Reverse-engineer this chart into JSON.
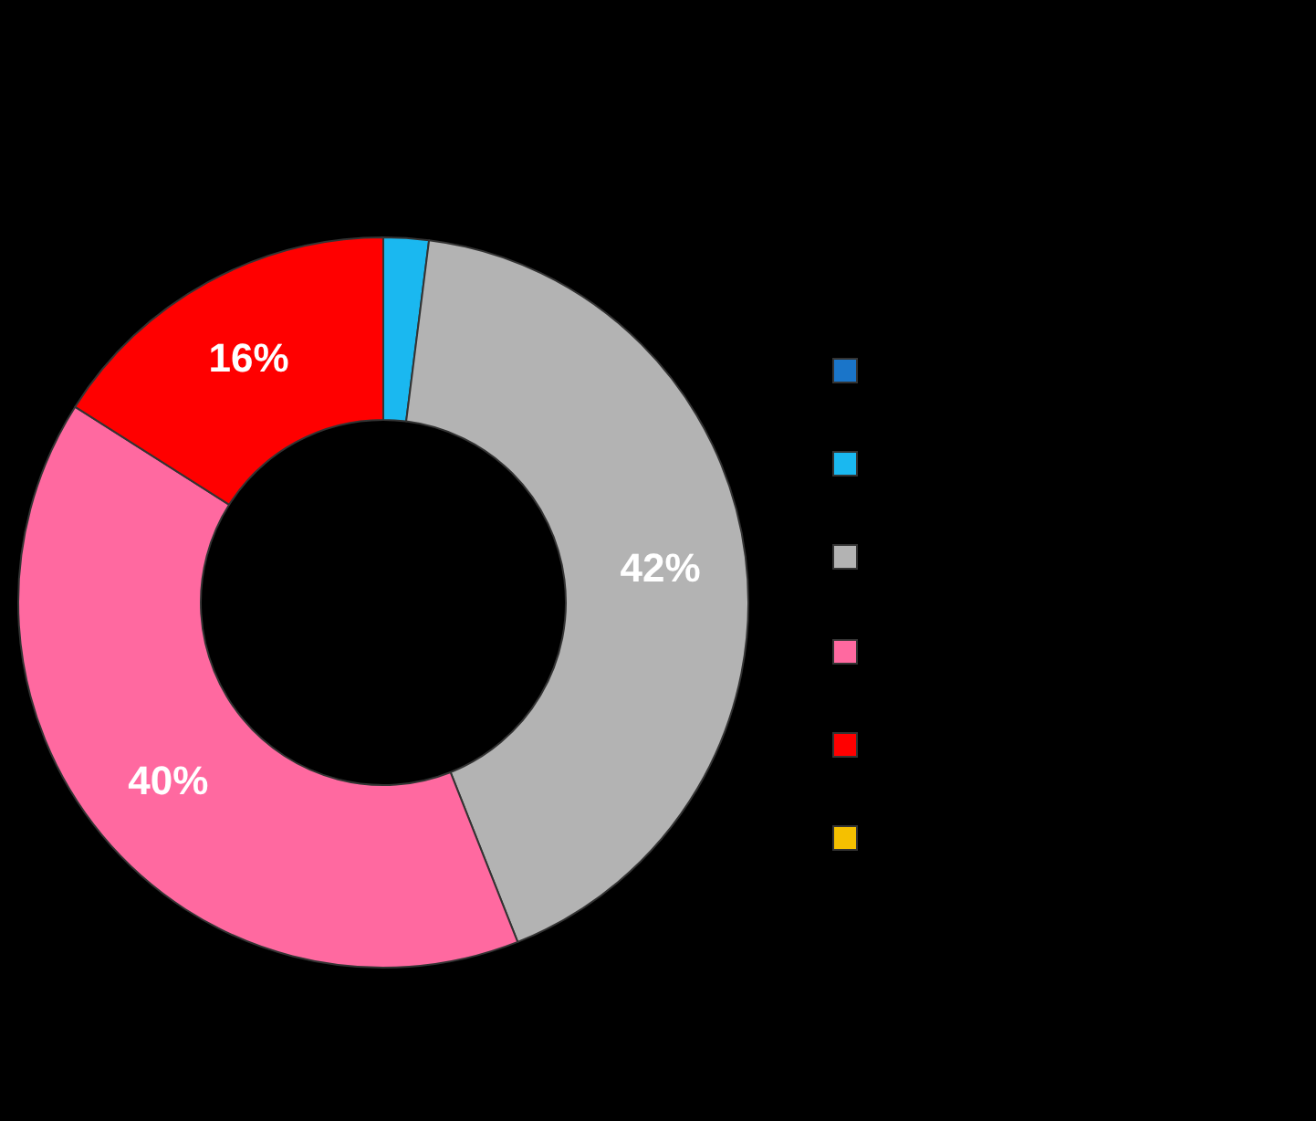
{
  "chart_data": {
    "type": "donut",
    "categories": [
      null,
      null,
      null,
      null,
      null,
      null
    ],
    "values": [
      0,
      2,
      42,
      40,
      16,
      0
    ],
    "colors": [
      "#1a75c9",
      "#1ab8f0",
      "#b3b3b3",
      "#ff69a0",
      "#ff0000",
      "#f5c000"
    ],
    "value_labels": [
      null,
      null,
      "42%",
      "40%",
      "16%",
      null
    ]
  }
}
